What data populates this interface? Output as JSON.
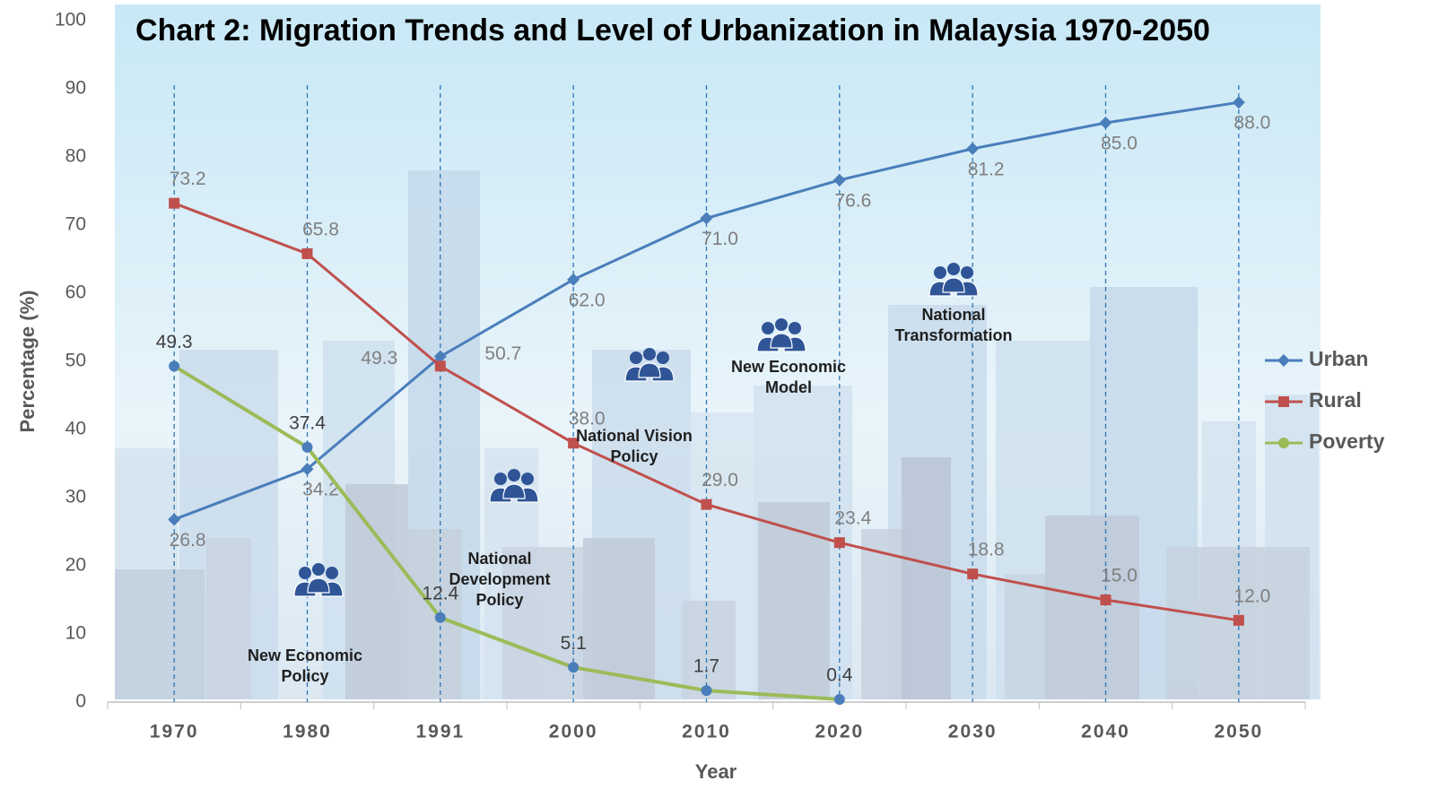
{
  "chart_data": {
    "type": "line",
    "title": "Chart 2: Migration Trends and Level of Urbanization in Malaysia 1970-2050",
    "x_label": "Year",
    "y_label": "Percentage (%)",
    "categories": [
      "1970",
      "1980",
      "1991",
      "2000",
      "2010",
      "2020",
      "2030",
      "2040",
      "2050"
    ],
    "series": [
      {
        "name": "Urban",
        "color": "#4a7ebb",
        "marker": "diamond",
        "values": [
          26.8,
          34.2,
          50.7,
          62.0,
          71.0,
          76.6,
          81.2,
          85.0,
          88.0
        ],
        "value_labels": [
          "26.8",
          "34.2",
          "50.7",
          "62.0",
          "71.0",
          "76.6",
          "81.2",
          "85.0",
          "88.0"
        ]
      },
      {
        "name": "Rural",
        "color": "#c0504d",
        "marker": "square",
        "values": [
          73.2,
          65.8,
          49.3,
          38.0,
          29.0,
          23.4,
          18.8,
          15.0,
          12.0
        ],
        "value_labels": [
          "73.2",
          "65.8",
          "49.3",
          "38.0",
          "29.0",
          "23.4",
          "18.8",
          "15.0",
          "12.0"
        ]
      },
      {
        "name": "Poverty",
        "color": "#9bbb59",
        "marker": "circle",
        "values": [
          49.3,
          37.4,
          12.4,
          5.1,
          1.7,
          0.4,
          null,
          null,
          null
        ],
        "value_labels": [
          "49.3",
          "37.4",
          "12.4",
          "5.1",
          "1.7",
          "0.4",
          null,
          null,
          null
        ]
      }
    ],
    "annotations": [
      "New Economic Policy",
      "National Development Policy",
      "National Vision Policy",
      "New Economic Model",
      "National Transformation"
    ],
    "ylim": [
      0,
      100
    ],
    "yticks": [
      0,
      10,
      20,
      30,
      40,
      50,
      60,
      70,
      80,
      90,
      100
    ],
    "grid": false,
    "legend": "right"
  }
}
